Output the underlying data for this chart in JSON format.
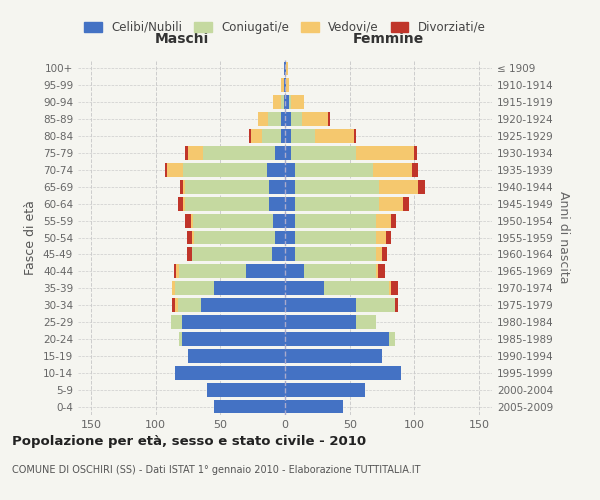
{
  "age_groups": [
    "0-4",
    "5-9",
    "10-14",
    "15-19",
    "20-24",
    "25-29",
    "30-34",
    "35-39",
    "40-44",
    "45-49",
    "50-54",
    "55-59",
    "60-64",
    "65-69",
    "70-74",
    "75-79",
    "80-84",
    "85-89",
    "90-94",
    "95-99",
    "100+"
  ],
  "birth_years": [
    "2005-2009",
    "2000-2004",
    "1995-1999",
    "1990-1994",
    "1985-1989",
    "1980-1984",
    "1975-1979",
    "1970-1974",
    "1965-1969",
    "1960-1964",
    "1955-1959",
    "1950-1954",
    "1945-1949",
    "1940-1944",
    "1935-1939",
    "1930-1934",
    "1925-1929",
    "1920-1924",
    "1915-1919",
    "1910-1914",
    "≤ 1909"
  ],
  "male": {
    "celibi": [
      55,
      60,
      85,
      75,
      80,
      80,
      65,
      55,
      30,
      10,
      8,
      9,
      12,
      12,
      14,
      8,
      3,
      3,
      1,
      1,
      1
    ],
    "coniugati": [
      0,
      0,
      0,
      0,
      2,
      8,
      18,
      30,
      52,
      62,
      62,
      62,
      65,
      65,
      65,
      55,
      15,
      10,
      2,
      0,
      0
    ],
    "vedovi": [
      0,
      0,
      0,
      0,
      0,
      0,
      2,
      2,
      2,
      0,
      2,
      2,
      2,
      2,
      12,
      12,
      8,
      8,
      6,
      2,
      0
    ],
    "divorziati": [
      0,
      0,
      0,
      0,
      0,
      0,
      2,
      0,
      2,
      4,
      4,
      4,
      4,
      2,
      2,
      2,
      2,
      0,
      0,
      0,
      0
    ]
  },
  "female": {
    "celibi": [
      45,
      62,
      90,
      75,
      80,
      55,
      55,
      30,
      15,
      8,
      8,
      8,
      8,
      8,
      8,
      5,
      5,
      5,
      3,
      1,
      1
    ],
    "coniugati": [
      0,
      0,
      0,
      0,
      5,
      15,
      30,
      50,
      55,
      62,
      62,
      62,
      65,
      65,
      60,
      50,
      18,
      8,
      2,
      0,
      0
    ],
    "vedovi": [
      0,
      0,
      0,
      0,
      0,
      0,
      0,
      2,
      2,
      5,
      8,
      12,
      18,
      30,
      30,
      45,
      30,
      20,
      10,
      2,
      1
    ],
    "divorziati": [
      0,
      0,
      0,
      0,
      0,
      0,
      2,
      5,
      5,
      4,
      4,
      4,
      5,
      5,
      5,
      2,
      2,
      2,
      0,
      0,
      0
    ]
  },
  "colors": {
    "celibi": "#4472c4",
    "coniugati": "#c5d9a0",
    "vedovi": "#f5c86e",
    "divorziati": "#c0352a"
  },
  "title": "Popolazione per età, sesso e stato civile - 2010",
  "subtitle": "COMUNE DI OSCHIRI (SS) - Dati ISTAT 1° gennaio 2010 - Elaborazione TUTTITALIA.IT",
  "ylabel_left": "Fasce di età",
  "ylabel_right": "Anni di nascita",
  "xlabel_left": "Maschi",
  "xlabel_right": "Femmine",
  "xlim": 160,
  "legend_labels": [
    "Celibi/Nubili",
    "Coniugati/e",
    "Vedovi/e",
    "Divorziati/e"
  ],
  "bg_color": "#f5f5f0"
}
